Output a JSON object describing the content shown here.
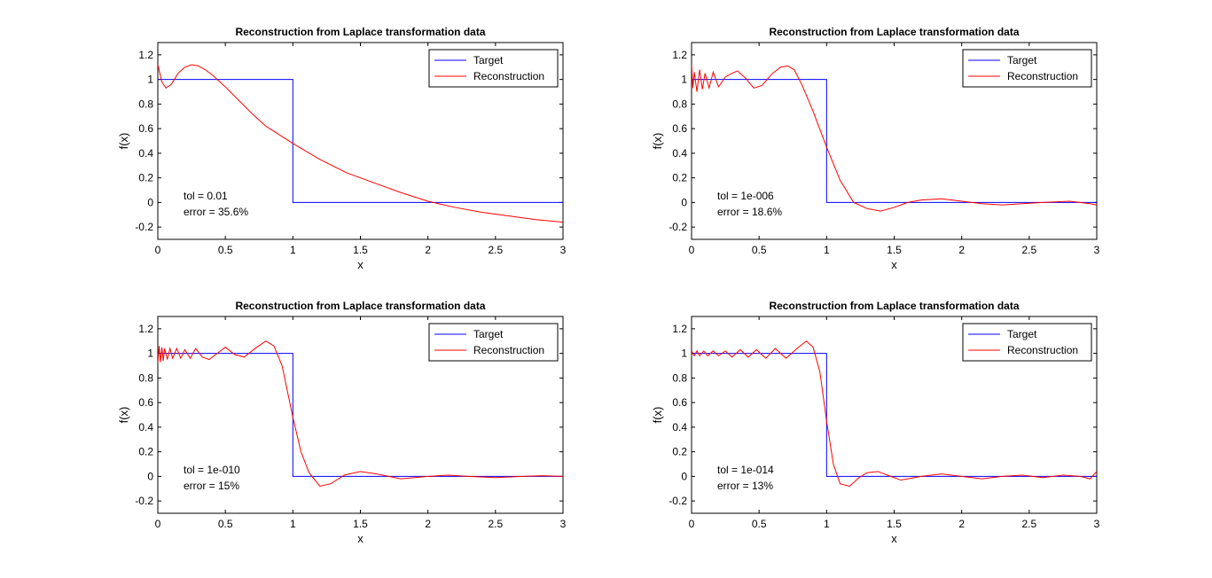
{
  "colors": {
    "target": "#0000ff",
    "reconstruction": "#ff0000",
    "axes": "#000000",
    "background": "#ffffff"
  },
  "chart_data": [
    {
      "type": "line",
      "title": "Reconstruction from Laplace transformation data",
      "xlabel": "x",
      "ylabel": "f(x)",
      "xlim": [
        0,
        3
      ],
      "ylim": [
        -0.3,
        1.3
      ],
      "xticks": [
        "0",
        "0.5",
        "1",
        "1.5",
        "2",
        "2.5",
        "3"
      ],
      "yticks": [
        "-0.2",
        "0",
        "0.2",
        "0.4",
        "0.6",
        "0.8",
        "1",
        "1.2"
      ],
      "grid": false,
      "legend_position": "top-right",
      "annotations": [
        "tol = 0.01",
        "error = 35.6%"
      ],
      "series": [
        {
          "name": "Target",
          "color": "#0000ff",
          "x": [
            0,
            1,
            1,
            3
          ],
          "y": [
            1,
            1,
            0,
            0
          ]
        },
        {
          "name": "Reconstruction",
          "color": "#ff0000",
          "x": [
            0,
            0.03,
            0.06,
            0.1,
            0.15,
            0.2,
            0.25,
            0.3,
            0.35,
            0.4,
            0.5,
            0.6,
            0.7,
            0.8,
            0.9,
            1.0,
            1.2,
            1.4,
            1.6,
            1.8,
            2.0,
            2.2,
            2.4,
            2.6,
            2.8,
            3.0
          ],
          "y": [
            1.12,
            0.98,
            0.93,
            0.96,
            1.05,
            1.1,
            1.12,
            1.11,
            1.08,
            1.04,
            0.94,
            0.83,
            0.72,
            0.62,
            0.55,
            0.48,
            0.35,
            0.24,
            0.16,
            0.08,
            0.01,
            -0.04,
            -0.08,
            -0.11,
            -0.14,
            -0.16
          ]
        }
      ]
    },
    {
      "type": "line",
      "title": "Reconstruction from Laplace transformation data",
      "xlabel": "x",
      "ylabel": "f(x)",
      "xlim": [
        0,
        3
      ],
      "ylim": [
        -0.3,
        1.3
      ],
      "xticks": [
        "0",
        "0.5",
        "1",
        "1.5",
        "2",
        "2.5",
        "3"
      ],
      "yticks": [
        "-0.2",
        "0",
        "0.2",
        "0.4",
        "0.6",
        "0.8",
        "1",
        "1.2"
      ],
      "grid": false,
      "legend_position": "top-right",
      "annotations": [
        "tol = 1e-006",
        "error = 18.6%"
      ],
      "series": [
        {
          "name": "Target",
          "color": "#0000ff",
          "x": [
            0,
            1,
            1,
            3
          ],
          "y": [
            1,
            1,
            0,
            0
          ]
        },
        {
          "name": "Reconstruction",
          "color": "#ff0000",
          "x": [
            0,
            0.01,
            0.02,
            0.04,
            0.06,
            0.08,
            0.1,
            0.13,
            0.16,
            0.2,
            0.25,
            0.3,
            0.34,
            0.4,
            0.46,
            0.52,
            0.6,
            0.66,
            0.71,
            0.76,
            0.82,
            0.9,
            1.0,
            1.1,
            1.2,
            1.3,
            1.4,
            1.5,
            1.6,
            1.7,
            1.85,
            2.0,
            2.15,
            2.3,
            2.45,
            2.6,
            2.8,
            2.95,
            3.0
          ],
          "y": [
            1.12,
            0.93,
            1.06,
            0.9,
            1.08,
            0.92,
            1.05,
            0.93,
            1.06,
            0.94,
            1.02,
            1.05,
            1.07,
            1.01,
            0.93,
            0.95,
            1.05,
            1.1,
            1.11,
            1.08,
            0.95,
            0.74,
            0.45,
            0.18,
            0.0,
            -0.05,
            -0.07,
            -0.04,
            0.0,
            0.02,
            0.03,
            0.01,
            -0.01,
            -0.02,
            -0.01,
            0.0,
            0.01,
            -0.01,
            -0.02
          ]
        }
      ]
    },
    {
      "type": "line",
      "title": "Reconstruction from Laplace transformation data",
      "xlabel": "x",
      "ylabel": "f(x)",
      "xlim": [
        0,
        3
      ],
      "ylim": [
        -0.3,
        1.3
      ],
      "xticks": [
        "0",
        "0.5",
        "1",
        "1.5",
        "2",
        "2.5",
        "3"
      ],
      "yticks": [
        "-0.2",
        "0",
        "0.2",
        "0.4",
        "0.6",
        "0.8",
        "1",
        "1.2"
      ],
      "grid": false,
      "legend_position": "top-right",
      "annotations": [
        "tol = 1e-010",
        "error = 15%"
      ],
      "series": [
        {
          "name": "Target",
          "color": "#0000ff",
          "x": [
            0,
            1,
            1,
            3
          ],
          "y": [
            1,
            1,
            0,
            0
          ]
        },
        {
          "name": "Reconstruction",
          "color": "#ff0000",
          "x": [
            0,
            0.01,
            0.02,
            0.03,
            0.04,
            0.05,
            0.07,
            0.09,
            0.11,
            0.14,
            0.17,
            0.2,
            0.24,
            0.28,
            0.33,
            0.38,
            0.44,
            0.5,
            0.57,
            0.64,
            0.72,
            0.8,
            0.86,
            0.92,
            1.0,
            1.06,
            1.12,
            1.2,
            1.28,
            1.38,
            1.5,
            1.62,
            1.8,
            2.0,
            2.15,
            2.3,
            2.5,
            2.7,
            2.85,
            3.0
          ],
          "y": [
            0.92,
            1.06,
            0.93,
            1.05,
            0.94,
            1.04,
            0.95,
            1.04,
            0.96,
            1.04,
            0.96,
            1.03,
            0.96,
            1.04,
            0.97,
            0.95,
            1.0,
            1.05,
            0.99,
            0.97,
            1.04,
            1.1,
            1.06,
            0.9,
            0.48,
            0.2,
            0.03,
            -0.08,
            -0.06,
            0.01,
            0.04,
            0.02,
            -0.02,
            0.0,
            0.01,
            0.0,
            -0.01,
            0.0,
            0.005,
            0.0
          ]
        }
      ]
    },
    {
      "type": "line",
      "title": "Reconstruction from Laplace transformation data",
      "xlabel": "x",
      "ylabel": "f(x)",
      "xlim": [
        0,
        3
      ],
      "ylim": [
        -0.3,
        1.3
      ],
      "xticks": [
        "0",
        "0.5",
        "1",
        "1.5",
        "2",
        "2.5",
        "3"
      ],
      "yticks": [
        "-0.2",
        "0",
        "0.2",
        "0.4",
        "0.6",
        "0.8",
        "1",
        "1.2"
      ],
      "grid": false,
      "legend_position": "top-right",
      "annotations": [
        "tol = 1e-014",
        "error = 13%"
      ],
      "series": [
        {
          "name": "Target",
          "color": "#0000ff",
          "x": [
            0,
            1,
            1,
            3
          ],
          "y": [
            1,
            1,
            0,
            0
          ]
        },
        {
          "name": "Reconstruction",
          "color": "#ff0000",
          "x": [
            0,
            0.02,
            0.04,
            0.06,
            0.09,
            0.12,
            0.16,
            0.2,
            0.25,
            0.3,
            0.36,
            0.42,
            0.48,
            0.55,
            0.62,
            0.7,
            0.78,
            0.85,
            0.9,
            0.95,
            1.0,
            1.05,
            1.1,
            1.17,
            1.24,
            1.3,
            1.38,
            1.45,
            1.55,
            1.7,
            1.85,
            2.0,
            2.15,
            2.3,
            2.45,
            2.6,
            2.75,
            2.88,
            2.95,
            3.0
          ],
          "y": [
            1.02,
            0.98,
            1.02,
            0.98,
            1.02,
            0.98,
            1.02,
            0.98,
            1.02,
            0.97,
            1.03,
            0.97,
            1.03,
            0.96,
            1.04,
            0.96,
            1.04,
            1.1,
            1.05,
            0.85,
            0.45,
            0.1,
            -0.06,
            -0.08,
            -0.01,
            0.03,
            0.04,
            0.01,
            -0.03,
            0.0,
            0.02,
            0.0,
            -0.02,
            0.0,
            0.01,
            -0.01,
            0.01,
            0.0,
            -0.02,
            0.04
          ]
        }
      ]
    }
  ]
}
